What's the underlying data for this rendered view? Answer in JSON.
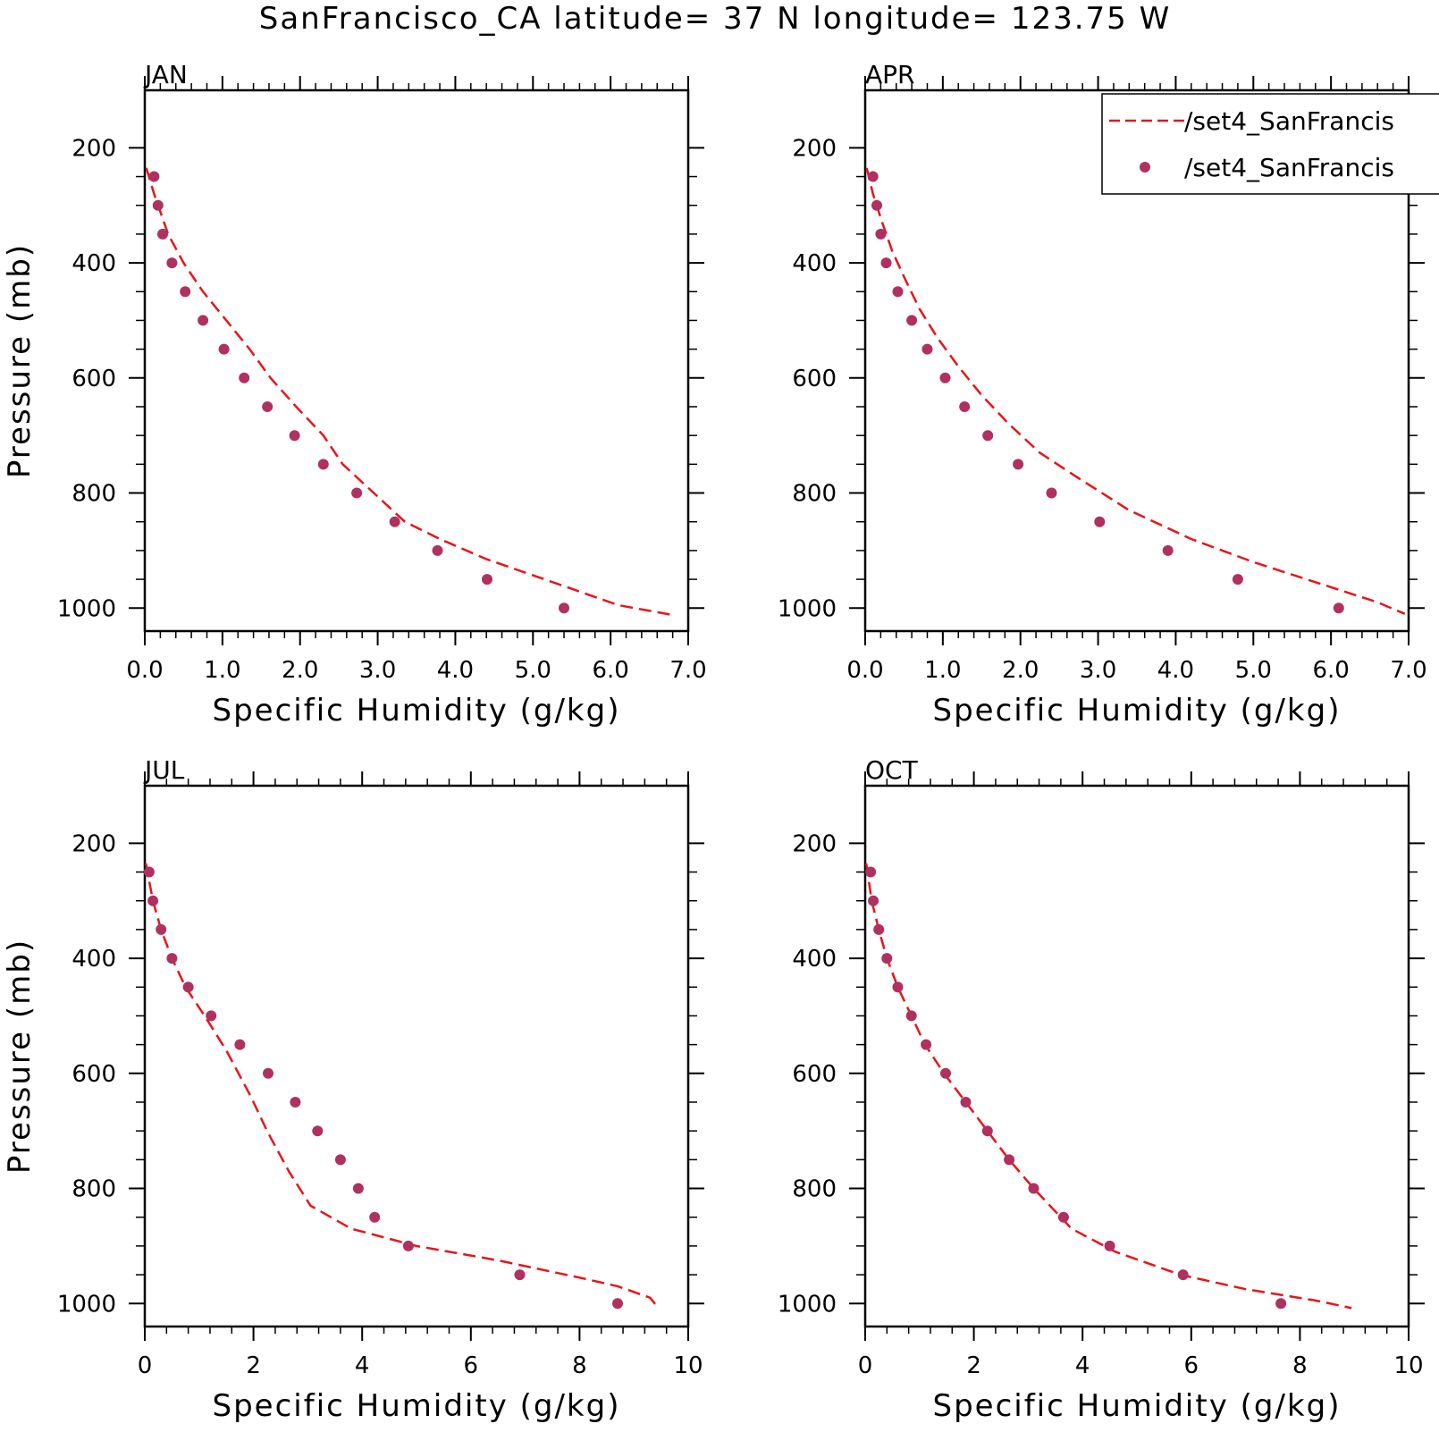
{
  "title": "SanFrancisco_CA  latitude= 37 N longitude= 123.75 W",
  "colors": {
    "model_line": "#e8141b",
    "obs_marker": "#b03060",
    "axis": "#000000"
  },
  "legend": {
    "location": "top-right of APR panel",
    "entries": [
      {
        "label": "/set4_SanFrancis",
        "style": "dashed-line",
        "color": "#e8141b"
      },
      {
        "label": "/set4_SanFrancis",
        "style": "dot",
        "color": "#b03060"
      }
    ]
  },
  "chart_data": [
    {
      "type": "line",
      "panel": "JAN",
      "title": "JAN",
      "xlabel": "Specific Humidity (g/kg)",
      "ylabel": "Pressure (mb)",
      "xlim": [
        0,
        7
      ],
      "ylim": [
        200,
        1000
      ],
      "y_inverted": true,
      "xticks": [
        0,
        1,
        2,
        3,
        4,
        5,
        6,
        7
      ],
      "xtick_labels": [
        "0.0",
        "1.0",
        "2.0",
        "3.0",
        "4.0",
        "5.0",
        "6.0",
        "7.0"
      ],
      "yticks": [
        200,
        400,
        600,
        800,
        1000
      ],
      "ytick_labels": [
        "200",
        "400",
        "600",
        "800",
        "1000"
      ],
      "series": [
        {
          "style": "dashed-line",
          "x": [
            0.02,
            0.12,
            0.3,
            0.5,
            0.75,
            1.05,
            1.35,
            1.62,
            1.95,
            2.3,
            2.55,
            2.95,
            3.35,
            3.8,
            4.4,
            5.15,
            6.1,
            6.8
          ],
          "y": [
            235,
            280,
            350,
            400,
            450,
            500,
            550,
            600,
            650,
            700,
            750,
            800,
            850,
            880,
            915,
            950,
            995,
            1012
          ]
        },
        {
          "style": "dots",
          "x": [
            0.12,
            0.17,
            0.23,
            0.35,
            0.52,
            0.75,
            1.02,
            1.28,
            1.58,
            1.93,
            2.3,
            2.73,
            3.22,
            3.77,
            4.41,
            5.4
          ],
          "y": [
            250,
            300,
            350,
            400,
            450,
            500,
            550,
            600,
            650,
            700,
            750,
            800,
            850,
            900,
            950,
            1000
          ]
        }
      ]
    },
    {
      "type": "line",
      "panel": "APR",
      "title": "APR",
      "xlabel": "Specific Humidity (g/kg)",
      "ylabel": "",
      "xlim": [
        0,
        7
      ],
      "ylim": [
        200,
        1000
      ],
      "y_inverted": true,
      "xticks": [
        0,
        1,
        2,
        3,
        4,
        5,
        6,
        7
      ],
      "xtick_labels": [
        "0.0",
        "1.0",
        "2.0",
        "3.0",
        "4.0",
        "5.0",
        "6.0",
        "7.0"
      ],
      "yticks": [
        200,
        400,
        600,
        800,
        1000
      ],
      "ytick_labels": [
        "200",
        "400",
        "600",
        "800",
        "1000"
      ],
      "series": [
        {
          "style": "dashed-line",
          "x": [
            0.02,
            0.1,
            0.22,
            0.35,
            0.52,
            0.7,
            0.93,
            1.2,
            1.5,
            1.85,
            2.25,
            2.7,
            3.4,
            4.2,
            5.0,
            5.8,
            6.6,
            6.95
          ],
          "y": [
            235,
            280,
            330,
            380,
            430,
            480,
            530,
            580,
            630,
            680,
            730,
            770,
            830,
            880,
            920,
            955,
            990,
            1010
          ]
        },
        {
          "style": "dots",
          "x": [
            0.1,
            0.15,
            0.2,
            0.27,
            0.42,
            0.6,
            0.8,
            1.03,
            1.28,
            1.58,
            1.97,
            2.4,
            3.02,
            3.9,
            4.8,
            6.1
          ],
          "y": [
            250,
            300,
            350,
            400,
            450,
            500,
            550,
            600,
            650,
            700,
            750,
            800,
            850,
            900,
            950,
            1000
          ]
        }
      ]
    },
    {
      "type": "line",
      "panel": "JUL",
      "title": "JUL",
      "xlabel": "Specific Humidity (g/kg)",
      "ylabel": "Pressure (mb)",
      "xlim": [
        0,
        10
      ],
      "ylim": [
        200,
        1000
      ],
      "y_inverted": true,
      "xticks": [
        0,
        2,
        4,
        6,
        8,
        10
      ],
      "xtick_labels": [
        "0",
        "2",
        "4",
        "6",
        "8",
        "10"
      ],
      "yticks": [
        200,
        400,
        600,
        800,
        1000
      ],
      "ytick_labels": [
        "200",
        "400",
        "600",
        "800",
        "1000"
      ],
      "series": [
        {
          "style": "dashed-line",
          "x": [
            0.02,
            0.15,
            0.3,
            0.5,
            0.75,
            1.1,
            1.5,
            1.95,
            2.25,
            2.65,
            3.05,
            3.8,
            5.0,
            6.5,
            8.0,
            8.7,
            9.3,
            9.45
          ],
          "y": [
            235,
            300,
            350,
            400,
            450,
            500,
            560,
            640,
            700,
            770,
            830,
            870,
            900,
            925,
            955,
            970,
            990,
            1008
          ]
        },
        {
          "style": "dots",
          "x": [
            0.08,
            0.15,
            0.3,
            0.5,
            0.8,
            1.22,
            1.75,
            2.27,
            2.77,
            3.18,
            3.6,
            3.93,
            4.23,
            4.85,
            6.9,
            8.7
          ],
          "y": [
            250,
            300,
            350,
            400,
            450,
            500,
            550,
            600,
            650,
            700,
            750,
            800,
            850,
            900,
            950,
            1000
          ]
        }
      ]
    },
    {
      "type": "line",
      "panel": "OCT",
      "title": "OCT",
      "xlabel": "Specific Humidity (g/kg)",
      "ylabel": "",
      "xlim": [
        0,
        10
      ],
      "ylim": [
        200,
        1000
      ],
      "y_inverted": true,
      "xticks": [
        0,
        2,
        4,
        6,
        8,
        10
      ],
      "xtick_labels": [
        "0",
        "2",
        "4",
        "6",
        "8",
        "10"
      ],
      "yticks": [
        200,
        400,
        600,
        800,
        1000
      ],
      "ytick_labels": [
        "200",
        "400",
        "600",
        "800",
        "1000"
      ],
      "series": [
        {
          "style": "dashed-line",
          "x": [
            0.02,
            0.12,
            0.25,
            0.4,
            0.6,
            0.85,
            1.1,
            1.45,
            1.85,
            2.25,
            2.65,
            3.1,
            3.8,
            4.6,
            5.8,
            7.0,
            8.3,
            8.95
          ],
          "y": [
            235,
            300,
            350,
            400,
            450,
            500,
            550,
            600,
            650,
            700,
            750,
            800,
            870,
            910,
            950,
            975,
            995,
            1008
          ]
        },
        {
          "style": "dots",
          "x": [
            0.1,
            0.15,
            0.25,
            0.4,
            0.6,
            0.85,
            1.12,
            1.48,
            1.85,
            2.25,
            2.65,
            3.1,
            3.65,
            4.5,
            5.85,
            7.65
          ],
          "y": [
            250,
            300,
            350,
            400,
            450,
            500,
            550,
            600,
            650,
            700,
            750,
            800,
            850,
            900,
            950,
            1000
          ]
        }
      ]
    }
  ]
}
